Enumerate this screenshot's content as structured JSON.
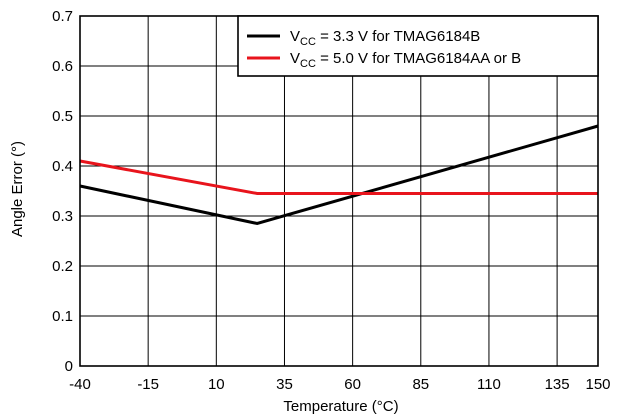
{
  "chart_data": {
    "type": "line",
    "title": "",
    "xlabel": "Temperature (°C)",
    "ylabel": "Angle Error (°)",
    "xlim": [
      -40,
      150
    ],
    "ylim": [
      0,
      0.7
    ],
    "x_ticks": [
      -40,
      -15,
      10,
      35,
      60,
      85,
      110,
      135,
      150
    ],
    "x_tick_labels": [
      "-40",
      "-15",
      "10",
      "35",
      "60",
      "85",
      "110",
      "135",
      "150"
    ],
    "y_ticks": [
      0,
      0.1,
      0.2,
      0.3,
      0.4,
      0.5,
      0.6,
      0.7
    ],
    "y_tick_labels": [
      "0",
      "0.1",
      "0.2",
      "0.3",
      "0.4",
      "0.5",
      "0.6",
      "0.7"
    ],
    "grid": true,
    "legend_position": "top-right",
    "series": [
      {
        "name_prefix": "V",
        "name_sub": "CC",
        "name_suffix": " = 3.3 V for TMAG6184B",
        "color": "#000000",
        "x": [
          -40,
          25,
          150
        ],
        "y": [
          0.36,
          0.285,
          0.48
        ]
      },
      {
        "name_prefix": "V",
        "name_sub": "CC",
        "name_suffix": " = 5.0 V for TMAG6184AA or B",
        "color": "#e8141c",
        "x": [
          -40,
          25,
          150
        ],
        "y": [
          0.41,
          0.345,
          0.345
        ]
      }
    ]
  }
}
